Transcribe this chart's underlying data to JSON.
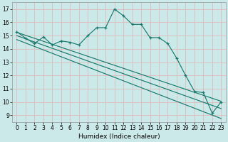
{
  "xlabel": "Humidex (Indice chaleur)",
  "xlim": [
    -0.5,
    23.5
  ],
  "ylim": [
    8.5,
    17.5
  ],
  "yticks": [
    9,
    10,
    11,
    12,
    13,
    14,
    15,
    16,
    17
  ],
  "xticks": [
    0,
    1,
    2,
    3,
    4,
    5,
    6,
    7,
    8,
    9,
    10,
    11,
    12,
    13,
    14,
    15,
    16,
    17,
    18,
    19,
    20,
    21,
    22,
    23
  ],
  "bg_color": "#cce9e9",
  "grid_color": "#ddbbbb",
  "line_color": "#1a7a6e",
  "main_line": [
    15.3,
    14.8,
    14.4,
    14.9,
    14.3,
    14.6,
    14.5,
    14.3,
    15.0,
    15.6,
    15.6,
    17.0,
    16.5,
    15.85,
    15.85,
    14.85,
    14.85,
    14.4,
    13.3,
    12.0,
    10.8,
    10.7,
    9.15,
    10.0
  ],
  "diag_lines": [
    {
      "x_start": 0,
      "y_start": 15.25,
      "x_end": 23,
      "y_end": 10.05
    },
    {
      "x_start": 0,
      "y_start": 15.0,
      "x_end": 23,
      "y_end": 9.5
    },
    {
      "x_start": 0,
      "y_start": 14.7,
      "x_end": 23,
      "y_end": 8.75
    }
  ]
}
